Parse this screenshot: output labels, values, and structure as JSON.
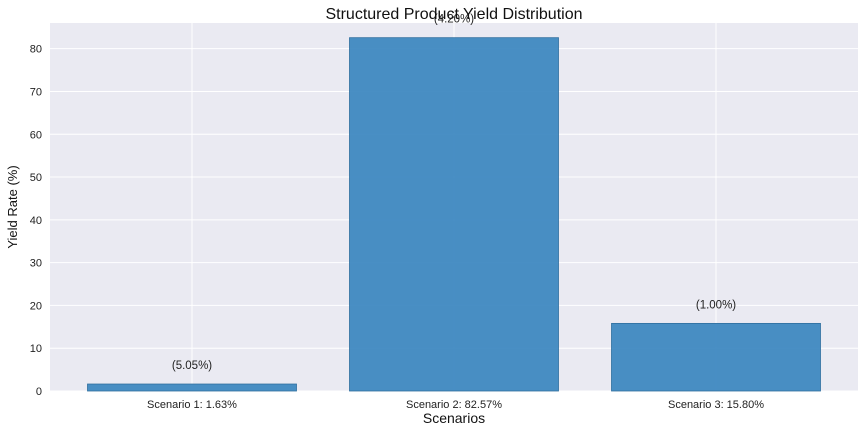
{
  "chart_data": {
    "type": "bar",
    "title": "Structured Product Yield Distribution",
    "xlabel": "Scenarios",
    "ylabel": "Yield Rate (%)",
    "categories": [
      "Scenario 1: 1.63%",
      "Scenario 2: 82.57%",
      "Scenario 3: 15.80%"
    ],
    "values": [
      1.63,
      82.57,
      15.8
    ],
    "data_labels": [
      "(5.05%)",
      "(4.20%)",
      "(1.00%)"
    ],
    "ylim": [
      0,
      86
    ],
    "yticks": [
      0,
      10,
      20,
      30,
      40,
      50,
      60,
      70,
      80
    ],
    "grid": true,
    "legend": "none",
    "colors": {
      "bar": "#3a86bf",
      "bar_edge": "#2f6f9f",
      "plot_background": "#eaeaf2",
      "grid": "#ffffff"
    }
  }
}
